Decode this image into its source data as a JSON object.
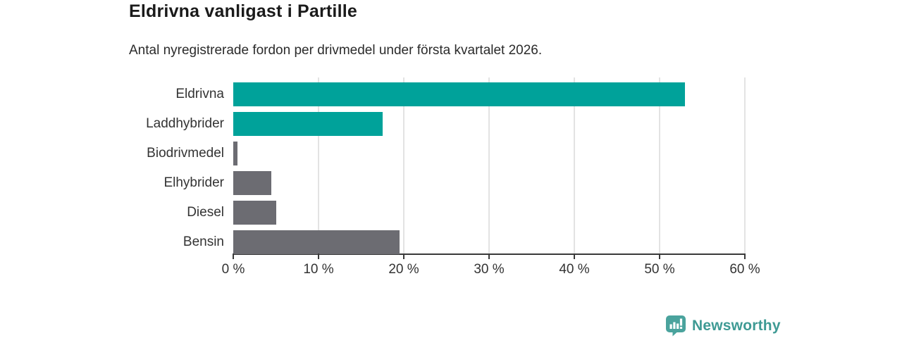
{
  "header": {
    "title": "Eldrivna vanligast i Partille",
    "subtitle": "Antal nyregistrerade fordon per drivmedel under första kvartalet 2026."
  },
  "chart_data": {
    "type": "bar",
    "orientation": "horizontal",
    "title": "Eldrivna vanligast i Partille",
    "subtitle": "Antal nyregistrerade fordon per drivmedel under första kvartalet 2026.",
    "categories": [
      "Eldrivna",
      "Laddhybrider",
      "Biodrivmedel",
      "Elhybrider",
      "Diesel",
      "Bensin"
    ],
    "values": [
      53,
      17.5,
      0.5,
      4.5,
      5,
      19.5
    ],
    "unit": "%",
    "xlim": [
      0,
      60
    ],
    "x_ticks": [
      0,
      10,
      20,
      30,
      40,
      50,
      60
    ],
    "x_tick_labels": [
      "0 %",
      "10 %",
      "20 %",
      "30 %",
      "40 %",
      "50 %",
      "60 %"
    ],
    "bar_colors": [
      "#00a29a",
      "#00a29a",
      "#6c6c72",
      "#6c6c72",
      "#6c6c72",
      "#6c6c72"
    ],
    "grid": true,
    "legend": false
  },
  "colors": {
    "accent_teal": "#00a29a",
    "bar_gray": "#6c6c72",
    "axis": "#3a3a3a",
    "gridline": "#e3e3e3",
    "title_text": "#1a1a1a",
    "body_text": "#333333",
    "brand_teal": "#3e9a94",
    "logo_fill": "#4aa39d"
  },
  "footer": {
    "brand": "Newsworthy",
    "logo_icon": "bar-chart-speech-bubble-icon"
  }
}
